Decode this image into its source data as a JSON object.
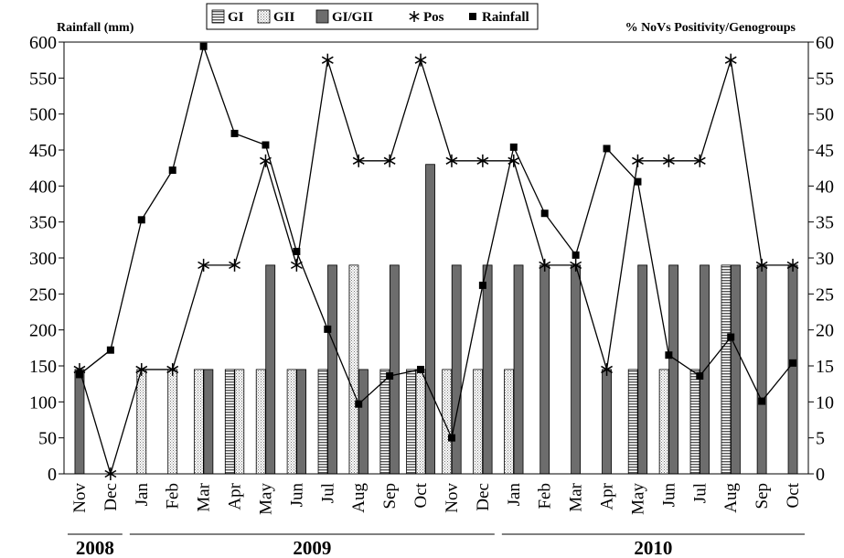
{
  "chart_data": {
    "type": "bar",
    "title": "",
    "ylabel_left": "Rainfall (mm)",
    "ylabel_right": "% NoVs Positivity/Genogroups",
    "ylim_left": [
      0,
      600
    ],
    "ylim_right": [
      0,
      60
    ],
    "yticks_left": [
      "0",
      "50",
      "100",
      "150",
      "200",
      "250",
      "300",
      "350",
      "400",
      "450",
      "500",
      "550",
      "600"
    ],
    "yticks_right": [
      "0",
      "5",
      "10",
      "15",
      "20",
      "25",
      "30",
      "35",
      "40",
      "45",
      "50",
      "55",
      "60"
    ],
    "legend_position": "top-center",
    "grid": false,
    "categories": [
      "Nov",
      "Dec",
      "Jan",
      "Feb",
      "Mar",
      "Apr",
      "May",
      "Jun",
      "Jul",
      "Aug",
      "Sep",
      "Oct",
      "Nov",
      "Dec",
      "Jan",
      "Feb",
      "Mar",
      "Apr",
      "May",
      "Jun",
      "Jul",
      "Aug",
      "Sep",
      "Oct"
    ],
    "years": [
      {
        "label": "2008",
        "start": 0,
        "end": 1
      },
      {
        "label": "2009",
        "start": 2,
        "end": 13
      },
      {
        "label": "2010",
        "start": 14,
        "end": 23
      }
    ],
    "series": [
      {
        "name": "GI",
        "kind": "bar",
        "axis": "right",
        "pattern": "hstripe",
        "values": [
          0,
          0,
          0,
          0,
          0,
          14.5,
          0,
          0,
          14.5,
          0,
          14.5,
          14.5,
          0,
          0,
          0,
          0,
          0,
          0,
          14.5,
          0,
          14.5,
          29,
          0,
          0
        ]
      },
      {
        "name": "GII",
        "kind": "bar",
        "axis": "right",
        "pattern": "dots",
        "values": [
          0,
          0,
          14.5,
          14.5,
          14.5,
          14.5,
          14.5,
          14.5,
          0,
          29,
          0,
          14.5,
          14.5,
          14.5,
          14.5,
          0,
          0,
          0,
          0,
          14.5,
          0,
          0,
          0,
          0
        ]
      },
      {
        "name": "GI/GII",
        "kind": "bar",
        "axis": "right",
        "pattern": "solid",
        "values": [
          14.5,
          0,
          0,
          0,
          14.5,
          0,
          29,
          14.5,
          29,
          14.5,
          29,
          43,
          29,
          29,
          29,
          29,
          29,
          14.5,
          29,
          29,
          29,
          29,
          29,
          29
        ]
      },
      {
        "name": "Pos",
        "kind": "line",
        "axis": "right",
        "marker": "asterisk",
        "values": [
          14.5,
          0,
          14.5,
          14.5,
          29,
          29,
          43.5,
          29,
          57.5,
          43.5,
          43.5,
          57.5,
          43.5,
          43.5,
          43.5,
          29,
          29,
          14.5,
          43.5,
          43.5,
          43.5,
          57.5,
          29,
          29
        ]
      },
      {
        "name": "Rainfall",
        "kind": "line",
        "axis": "left",
        "marker": "square",
        "values": [
          138,
          172,
          353,
          422,
          594,
          473,
          457,
          309,
          201,
          97,
          136,
          145,
          50,
          262,
          454,
          362,
          304,
          452,
          406,
          165,
          136,
          190,
          101,
          154
        ]
      }
    ]
  },
  "colors": {
    "bar_fill": "#6d6d6d",
    "bar_stroke": "#000000",
    "line": "#000000"
  }
}
